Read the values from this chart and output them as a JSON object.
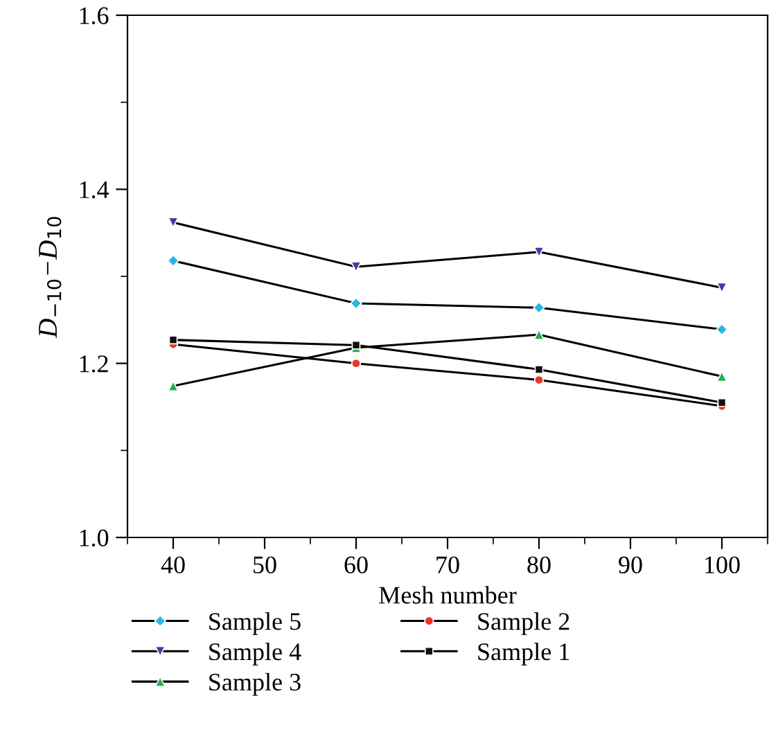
{
  "chart_data": {
    "type": "line",
    "xlabel": "Mesh number",
    "ylabel": "D$_{−10}$−D$_{10}$",
    "x": [
      40,
      60,
      80,
      100
    ],
    "series": [
      {
        "name": "Sample 5",
        "color": "#29b6e6",
        "marker": "diamond",
        "values": [
          1.318,
          1.269,
          1.264,
          1.239
        ]
      },
      {
        "name": "Sample 4",
        "color": "#4b3aa6",
        "marker": "triangle_down",
        "values": [
          1.362,
          1.311,
          1.328,
          1.287
        ]
      },
      {
        "name": "Sample 3",
        "color": "#22b24c",
        "marker": "triangle",
        "values": [
          1.174,
          1.218,
          1.233,
          1.185
        ]
      },
      {
        "name": "Sample 2",
        "color": "#e8372a",
        "marker": "circle",
        "values": [
          1.222,
          1.2,
          1.181,
          1.151
        ]
      },
      {
        "name": "Sample 1",
        "color": "#111111",
        "marker": "square",
        "values": [
          1.227,
          1.221,
          1.193,
          1.155
        ]
      }
    ],
    "xlim": [
      35,
      105
    ],
    "xticks": [
      40,
      50,
      60,
      70,
      80,
      90,
      100
    ],
    "ylim": [
      1.0,
      1.6
    ],
    "yticks": [
      {
        "value": 1.0,
        "label": "1.0"
      },
      1.2,
      1.4,
      1.6
    ],
    "grid": false,
    "legend": "bottom",
    "line_style": "solid"
  }
}
